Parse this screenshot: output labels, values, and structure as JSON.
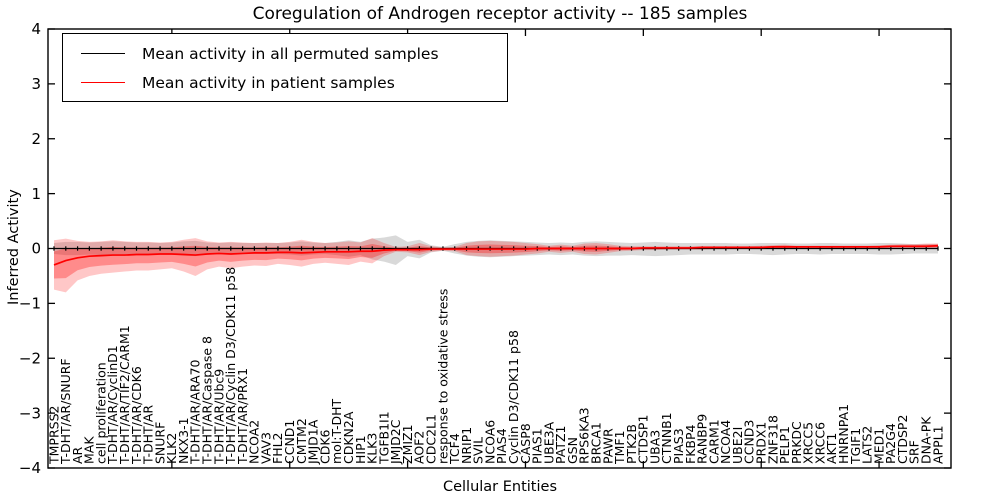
{
  "figure": {
    "title": "Coregulation of Androgen receptor activity -- 185 samples",
    "xlabel": "Cellular Entities",
    "ylabel": "Inferred Activity"
  },
  "legend": {
    "items": [
      {
        "label": "Mean activity in all permuted samples",
        "color": "#000000"
      },
      {
        "label": "Mean activity in patient samples",
        "color": "#ff0000"
      }
    ]
  },
  "chart_data": {
    "type": "line",
    "title": "Coregulation of Androgen receptor activity -- 185 samples",
    "xlabel": "Cellular Entities",
    "ylabel": "Inferred Activity",
    "ylim": [
      -4,
      4
    ],
    "ytick_labels": [
      "4",
      "3",
      "2",
      "1",
      "0",
      "−1",
      "−2",
      "−3",
      "−4"
    ],
    "yticks": [
      4,
      3,
      2,
      1,
      0,
      -1,
      -2,
      -3,
      -4
    ],
    "grid": false,
    "legend_position": "upper left",
    "x_major_tick_every": 10,
    "categories": [
      "TMPRSS2",
      "T-DHT/AR/SNURF",
      "AR",
      "MAK",
      "cell proliferation",
      "T-DHT/AR/CyclinD1",
      "T-DHT/AR/TIF2/CARM1",
      "T-DHT/AR/CDK6",
      "T-DHT/AR",
      "SNURF",
      "KLK2",
      "NKX3-1",
      "T-DHT/AR/ARA70",
      "T-DHT/AR/Caspase 8",
      "T-DHT/AR/Ubc9",
      "T-DHT/AR/Cyclin D3/CDK11 p58",
      "T-DHT/AR/PRX1",
      "NCOA2",
      "VAV3",
      "FHL2",
      "CCND1",
      "CMTM2",
      "JMJD1A",
      "CDK6",
      "mol:T-DHT",
      "CDKN2A",
      "HIP1",
      "KLK3",
      "TGFB1I1",
      "JMJD2C",
      "ZMIZ1",
      "AOF2",
      "CDC2L1",
      "response to oxidative stress",
      "TCF4",
      "NRIP1",
      "SVIL",
      "NCOA6",
      "PIAS4",
      "Cyclin D3/CDK11 p58",
      "CASP8",
      "PIAS1",
      "UBE3A",
      "PATZ1",
      "GSN",
      "RPS6KA3",
      "BRCA1",
      "PAWR",
      "TMF1",
      "PTK2B",
      "CTDSP1",
      "UBA3",
      "CTNNB1",
      "PIAS3",
      "FKBP4",
      "RANBP9",
      "CARM1",
      "NCOA4",
      "UBE2I",
      "CCND3",
      "PRDX1",
      "ZNF318",
      "PELP1",
      "PRKDC",
      "XRCC5",
      "XRCC6",
      "AKT1",
      "HNRNPA1",
      "TGIF1",
      "LATS2",
      "MED1",
      "PA2G4",
      "CTDSP2",
      "SRF",
      "DNA-PK",
      "APPL1"
    ],
    "series": [
      {
        "name": "Mean activity in all permuted samples",
        "color": "#000000",
        "marker": "vertical-dash",
        "values": [
          0,
          0,
          0,
          0,
          0,
          0,
          0,
          0,
          0,
          0,
          0,
          0,
          0,
          0,
          0,
          0,
          0,
          0,
          0,
          0,
          0,
          0,
          0,
          0,
          0,
          0,
          0,
          0,
          0,
          0,
          0,
          0,
          0,
          0,
          0,
          0,
          0,
          0,
          0,
          0,
          0,
          0,
          0,
          0,
          0,
          0,
          0,
          0,
          0,
          0,
          0,
          0,
          0,
          0,
          0,
          0,
          0,
          0,
          0,
          0,
          0,
          0,
          0,
          0,
          0,
          0,
          0,
          0,
          0,
          0,
          0,
          0,
          0,
          0,
          0,
          0
        ]
      },
      {
        "name": "Mean activity in patient samples",
        "color": "#ff0000",
        "marker": "none",
        "values": [
          -0.3,
          -0.22,
          -0.17,
          -0.14,
          -0.13,
          -0.12,
          -0.12,
          -0.11,
          -0.11,
          -0.1,
          -0.1,
          -0.11,
          -0.12,
          -0.1,
          -0.09,
          -0.1,
          -0.09,
          -0.08,
          -0.08,
          -0.07,
          -0.07,
          -0.08,
          -0.07,
          -0.06,
          -0.06,
          -0.06,
          -0.05,
          -0.05,
          -0.03,
          -0.02,
          -0.02,
          -0.02,
          -0.01,
          -0.01,
          -0.01,
          -0.01,
          -0.01,
          -0.01,
          -0.01,
          -0.01,
          -0.01,
          0.0,
          0.0,
          0.0,
          0.0,
          0.0,
          0.0,
          0.0,
          0.0,
          0.0,
          0.01,
          0.01,
          0.01,
          0.01,
          0.01,
          0.02,
          0.02,
          0.02,
          0.02,
          0.02,
          0.02,
          0.03,
          0.03,
          0.03,
          0.03,
          0.03,
          0.03,
          0.03,
          0.03,
          0.03,
          0.03,
          0.04,
          0.04,
          0.04,
          0.04,
          0.05
        ]
      }
    ],
    "bands": [
      {
        "name": "permuted-samples-std-band",
        "color": "rgba(0,0,0,0.15)",
        "upper": [
          0.1,
          0.12,
          0.12,
          0.11,
          0.12,
          0.13,
          0.12,
          0.11,
          0.11,
          0.1,
          0.11,
          0.13,
          0.14,
          0.11,
          0.1,
          0.11,
          0.1,
          0.1,
          0.1,
          0.1,
          0.11,
          0.13,
          0.11,
          0.1,
          0.12,
          0.15,
          0.12,
          0.18,
          0.2,
          0.24,
          0.12,
          0.16,
          0.06,
          0.03,
          0.08,
          0.12,
          0.14,
          0.15,
          0.14,
          0.13,
          0.12,
          0.11,
          0.1,
          0.11,
          0.1,
          0.12,
          0.13,
          0.12,
          0.11,
          0.1,
          0.11,
          0.12,
          0.11,
          0.1,
          0.1,
          0.1,
          0.1,
          0.1,
          0.09,
          0.09,
          0.1,
          0.1,
          0.1,
          0.09,
          0.09,
          0.1,
          0.1,
          0.09,
          0.09,
          0.09,
          0.1,
          0.1,
          0.09,
          0.08,
          0.08,
          0.08
        ],
        "lower": [
          -0.1,
          -0.12,
          -0.12,
          -0.11,
          -0.12,
          -0.13,
          -0.12,
          -0.11,
          -0.11,
          -0.1,
          -0.11,
          -0.13,
          -0.14,
          -0.11,
          -0.1,
          -0.11,
          -0.1,
          -0.1,
          -0.1,
          -0.1,
          -0.11,
          -0.13,
          -0.11,
          -0.1,
          -0.12,
          -0.15,
          -0.12,
          -0.2,
          -0.24,
          -0.3,
          -0.14,
          -0.18,
          -0.07,
          -0.04,
          -0.09,
          -0.13,
          -0.15,
          -0.16,
          -0.15,
          -0.14,
          -0.13,
          -0.12,
          -0.11,
          -0.12,
          -0.11,
          -0.13,
          -0.14,
          -0.13,
          -0.13,
          -0.12,
          -0.13,
          -0.14,
          -0.13,
          -0.12,
          -0.11,
          -0.11,
          -0.11,
          -0.11,
          -0.1,
          -0.1,
          -0.11,
          -0.12,
          -0.11,
          -0.1,
          -0.1,
          -0.11,
          -0.1,
          -0.1,
          -0.1,
          -0.1,
          -0.11,
          -0.11,
          -0.1,
          -0.09,
          -0.09,
          -0.09
        ]
      },
      {
        "name": "patient-samples-std-band",
        "color": "rgba(255,0,0,0.22)",
        "inner_color": "rgba(255,0,0,0.30)",
        "upper": [
          0.15,
          0.18,
          0.14,
          0.12,
          0.13,
          0.15,
          0.13,
          0.12,
          0.12,
          0.11,
          0.12,
          0.16,
          0.19,
          0.13,
          0.11,
          0.12,
          0.11,
          0.1,
          0.11,
          0.1,
          0.12,
          0.16,
          0.12,
          0.1,
          0.11,
          0.13,
          0.11,
          0.19,
          0.1,
          0.03,
          0.04,
          0.1,
          0.04,
          0.02,
          0.03,
          0.1,
          0.13,
          0.14,
          0.13,
          0.12,
          0.1,
          0.08,
          0.05,
          0.07,
          0.05,
          0.09,
          0.1,
          0.08,
          0.05,
          0.04,
          0.04,
          0.04,
          0.04,
          0.04,
          0.04,
          0.04,
          0.04,
          0.04,
          0.04,
          0.04,
          0.05,
          0.06,
          0.07,
          0.05,
          0.05,
          0.05,
          0.05,
          0.05,
          0.05,
          0.05,
          0.06,
          0.07,
          0.08,
          0.08,
          0.09,
          0.09
        ],
        "lower": [
          -0.75,
          -0.8,
          -0.58,
          -0.5,
          -0.46,
          -0.44,
          -0.42,
          -0.4,
          -0.4,
          -0.38,
          -0.36,
          -0.42,
          -0.5,
          -0.38,
          -0.33,
          -0.36,
          -0.33,
          -0.31,
          -0.32,
          -0.28,
          -0.3,
          -0.33,
          -0.28,
          -0.26,
          -0.28,
          -0.3,
          -0.24,
          -0.27,
          -0.14,
          -0.06,
          -0.07,
          -0.12,
          -0.06,
          -0.04,
          -0.05,
          -0.12,
          -0.14,
          -0.15,
          -0.14,
          -0.13,
          -0.11,
          -0.09,
          -0.06,
          -0.08,
          -0.06,
          -0.1,
          -0.11,
          -0.08,
          -0.05,
          -0.04,
          -0.03,
          -0.03,
          -0.02,
          -0.02,
          -0.02,
          -0.02,
          -0.01,
          -0.01,
          -0.01,
          -0.01,
          0.0,
          0.0,
          0.0,
          0.0,
          0.01,
          0.01,
          0.01,
          0.01,
          0.01,
          0.01,
          0.01,
          0.01,
          0.01,
          0.0,
          0.0,
          0.0
        ]
      }
    ],
    "colors": {
      "patient_line": "#ff0000",
      "permuted_line": "#000000",
      "patient_band": "rgba(255,0,0,0.22)",
      "patient_band_inner": "rgba(255,0,0,0.30)",
      "permuted_band": "rgba(0,0,0,0.15)"
    }
  }
}
